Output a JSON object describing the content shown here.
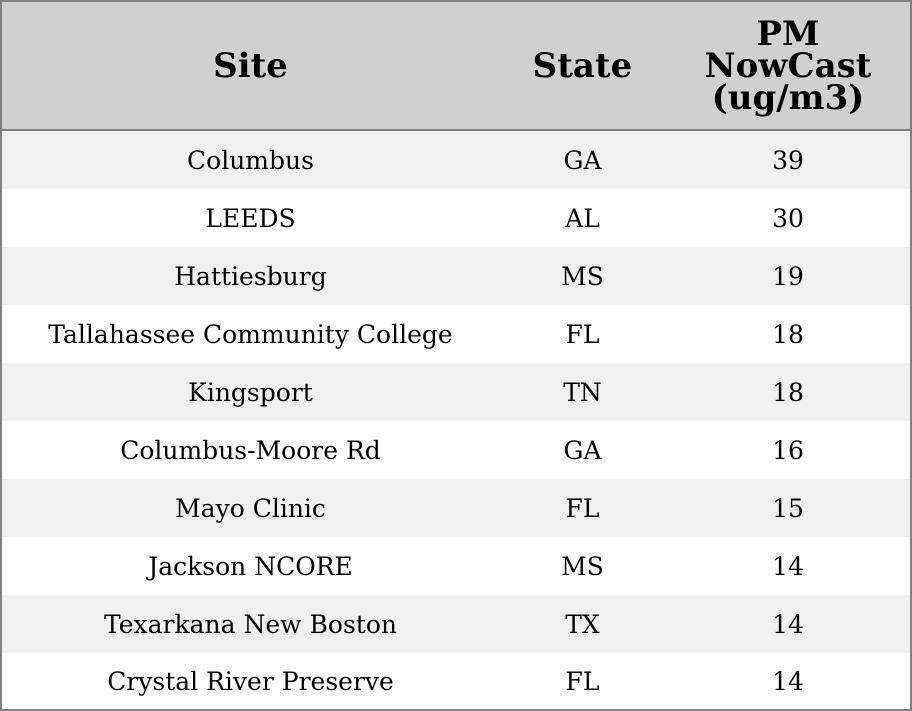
{
  "chart_data": {
    "type": "table",
    "columns": [
      "Site",
      "State",
      "PM NowCast (ug/m3)"
    ],
    "header": {
      "site": "Site",
      "state": "State",
      "pm_lines": [
        "PM",
        "NowCast",
        "(ug/m3)"
      ]
    },
    "rows": [
      {
        "site": "Columbus",
        "state": "GA",
        "pm": "39"
      },
      {
        "site": "LEEDS",
        "state": "AL",
        "pm": "30"
      },
      {
        "site": "Hattiesburg",
        "state": "MS",
        "pm": "19"
      },
      {
        "site": "Tallahassee Community College",
        "state": "FL",
        "pm": "18"
      },
      {
        "site": "Kingsport",
        "state": "TN",
        "pm": "18"
      },
      {
        "site": "Columbus-Moore Rd",
        "state": "GA",
        "pm": "16"
      },
      {
        "site": "Mayo Clinic",
        "state": "FL",
        "pm": "15"
      },
      {
        "site": "Jackson NCORE",
        "state": "MS",
        "pm": "14"
      },
      {
        "site": "Texarkana New Boston",
        "state": "TX",
        "pm": "14"
      },
      {
        "site": "Crystal River Preserve",
        "state": "FL",
        "pm": "14"
      }
    ],
    "colors": {
      "header_bg": "#d0d0d0",
      "stripe_bg": "#f0f0f0",
      "row_bg": "#ffffff",
      "border": "#808080"
    }
  }
}
